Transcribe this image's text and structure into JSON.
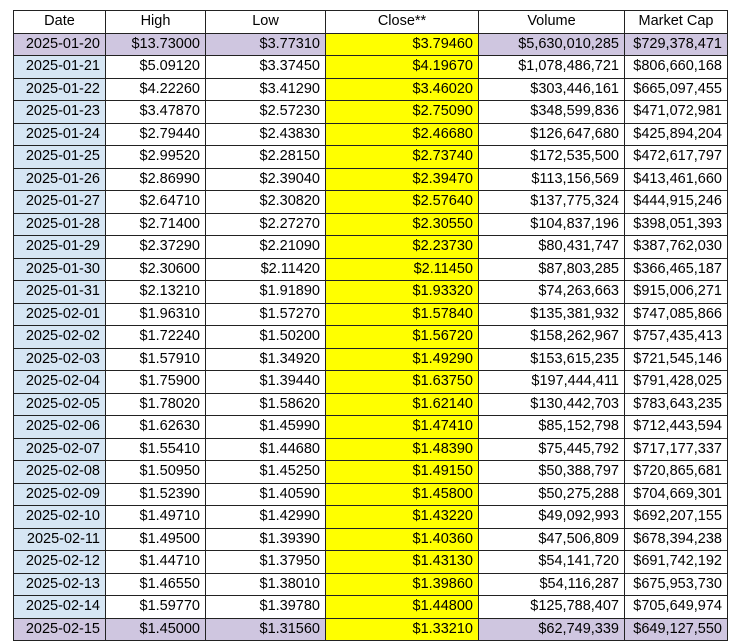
{
  "table": {
    "headers": [
      "Date",
      "High",
      "Low",
      "Close**",
      "Volume",
      "Market Cap"
    ],
    "rows": [
      [
        "2025-01-20",
        "$13.73000",
        "$3.77310",
        "$3.79460",
        "$5,630,010,285",
        "$729,378,471"
      ],
      [
        "2025-01-21",
        "$5.09120",
        "$3.37450",
        "$4.19670",
        "$1,078,486,721",
        "$806,660,168"
      ],
      [
        "2025-01-22",
        "$4.22260",
        "$3.41290",
        "$3.46020",
        "$303,446,161",
        "$665,097,455"
      ],
      [
        "2025-01-23",
        "$3.47870",
        "$2.57230",
        "$2.75090",
        "$348,599,836",
        "$471,072,981"
      ],
      [
        "2025-01-24",
        "$2.79440",
        "$2.43830",
        "$2.46680",
        "$126,647,680",
        "$425,894,204"
      ],
      [
        "2025-01-25",
        "$2.99520",
        "$2.28150",
        "$2.73740",
        "$172,535,500",
        "$472,617,797"
      ],
      [
        "2025-01-26",
        "$2.86990",
        "$2.39040",
        "$2.39470",
        "$113,156,569",
        "$413,461,660"
      ],
      [
        "2025-01-27",
        "$2.64710",
        "$2.30820",
        "$2.57640",
        "$137,775,324",
        "$444,915,246"
      ],
      [
        "2025-01-28",
        "$2.71400",
        "$2.27270",
        "$2.30550",
        "$104,837,196",
        "$398,051,393"
      ],
      [
        "2025-01-29",
        "$2.37290",
        "$2.21090",
        "$2.23730",
        "$80,431,747",
        "$387,762,030"
      ],
      [
        "2025-01-30",
        "$2.30600",
        "$2.11420",
        "$2.11450",
        "$87,803,285",
        "$366,465,187"
      ],
      [
        "2025-01-31",
        "$2.13210",
        "$1.91890",
        "$1.93320",
        "$74,263,663",
        "$915,006,271"
      ],
      [
        "2025-02-01",
        "$1.96310",
        "$1.57270",
        "$1.57840",
        "$135,381,932",
        "$747,085,866"
      ],
      [
        "2025-02-02",
        "$1.72240",
        "$1.50200",
        "$1.56720",
        "$158,262,967",
        "$757,435,413"
      ],
      [
        "2025-02-03",
        "$1.57910",
        "$1.34920",
        "$1.49290",
        "$153,615,235",
        "$721,545,146"
      ],
      [
        "2025-02-04",
        "$1.75900",
        "$1.39440",
        "$1.63750",
        "$197,444,411",
        "$791,428,025"
      ],
      [
        "2025-02-05",
        "$1.78020",
        "$1.58620",
        "$1.62140",
        "$130,442,703",
        "$783,643,235"
      ],
      [
        "2025-02-06",
        "$1.62630",
        "$1.45990",
        "$1.47410",
        "$85,152,798",
        "$712,443,594"
      ],
      [
        "2025-02-07",
        "$1.55410",
        "$1.44680",
        "$1.48390",
        "$75,445,792",
        "$717,177,337"
      ],
      [
        "2025-02-08",
        "$1.50950",
        "$1.45250",
        "$1.49150",
        "$50,388,797",
        "$720,865,681"
      ],
      [
        "2025-02-09",
        "$1.52390",
        "$1.40590",
        "$1.45800",
        "$50,275,288",
        "$704,669,301"
      ],
      [
        "2025-02-10",
        "$1.49710",
        "$1.42990",
        "$1.43220",
        "$49,092,993",
        "$692,207,155"
      ],
      [
        "2025-02-11",
        "$1.49500",
        "$1.39390",
        "$1.40360",
        "$47,506,809",
        "$678,394,238"
      ],
      [
        "2025-02-12",
        "$1.44710",
        "$1.37950",
        "$1.43130",
        "$54,141,720",
        "$691,742,192"
      ],
      [
        "2025-02-13",
        "$1.46550",
        "$1.38010",
        "$1.39860",
        "$54,116,287",
        "$675,953,730"
      ],
      [
        "2025-02-14",
        "$1.59770",
        "$1.39780",
        "$1.44800",
        "$125,788,407",
        "$705,649,974"
      ],
      [
        "2025-02-15",
        "$1.45000",
        "$1.31560",
        "$1.33210",
        "$62,749,339",
        "$649,127,550"
      ]
    ],
    "highlighted_rows": [
      0,
      26
    ]
  },
  "colors": {
    "date_column": "#d6e6f4",
    "close_column": "#ffff00",
    "highlight_row": "#cfc6e0"
  }
}
